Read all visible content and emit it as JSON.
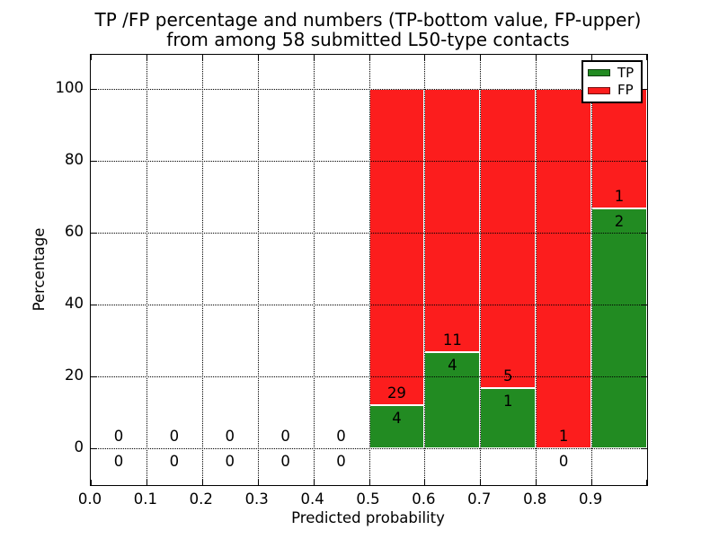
{
  "title": {
    "line1": "TP /FP percentage and numbers (TP-bottom value, FP-upper)",
    "line2": "from among 58 submitted L50-type contacts"
  },
  "axes": {
    "xlabel": "Predicted probability",
    "ylabel": "Percentage",
    "x_tick_labels": [
      "0.0",
      "0.1",
      "0.2",
      "0.3",
      "0.4",
      "0.5",
      "0.6",
      "0.7",
      "0.8",
      "0.9"
    ],
    "y_tick_labels": [
      "0",
      "20",
      "40",
      "60",
      "80",
      "100"
    ],
    "y_tick_values": [
      0,
      20,
      40,
      60,
      80,
      100
    ]
  },
  "legend": {
    "items": [
      {
        "label": "TP",
        "color": "#228b22"
      },
      {
        "label": "FP",
        "color": "#fc1d1d"
      }
    ]
  },
  "colors": {
    "tp": "#228b22",
    "fp": "#fc1d1d",
    "bar_edge": "#ffffff",
    "grid": "#000000",
    "text": "#000000",
    "background": "#ffffff"
  },
  "chart_data": {
    "type": "bar",
    "stacked": true,
    "title": "TP /FP percentage and numbers (TP-bottom value, FP-upper) from among 58 submitted L50-type contacts",
    "xlabel": "Predicted probability",
    "ylabel": "Percentage",
    "xlim": [
      0.0,
      1.0
    ],
    "ylim": [
      -10.25,
      109.75
    ],
    "grid": "dotted",
    "legend_position": "upper right",
    "total_contacts": 58,
    "bin_width": 0.1,
    "bin_starts": [
      0.0,
      0.1,
      0.2,
      0.3,
      0.4,
      0.5,
      0.6,
      0.7,
      0.8,
      0.9
    ],
    "series": [
      {
        "name": "TP",
        "color": "#228b22",
        "counts": [
          0,
          0,
          0,
          0,
          0,
          4,
          4,
          1,
          0,
          2
        ],
        "pct": [
          0,
          0,
          0,
          0,
          0,
          12.12,
          26.67,
          16.67,
          0,
          66.67
        ]
      },
      {
        "name": "FP",
        "color": "#fc1d1d",
        "counts": [
          0,
          0,
          0,
          0,
          0,
          29,
          11,
          5,
          1,
          1
        ],
        "pct": [
          0,
          0,
          0,
          0,
          0,
          87.88,
          73.33,
          83.33,
          100,
          33.33
        ]
      }
    ]
  }
}
